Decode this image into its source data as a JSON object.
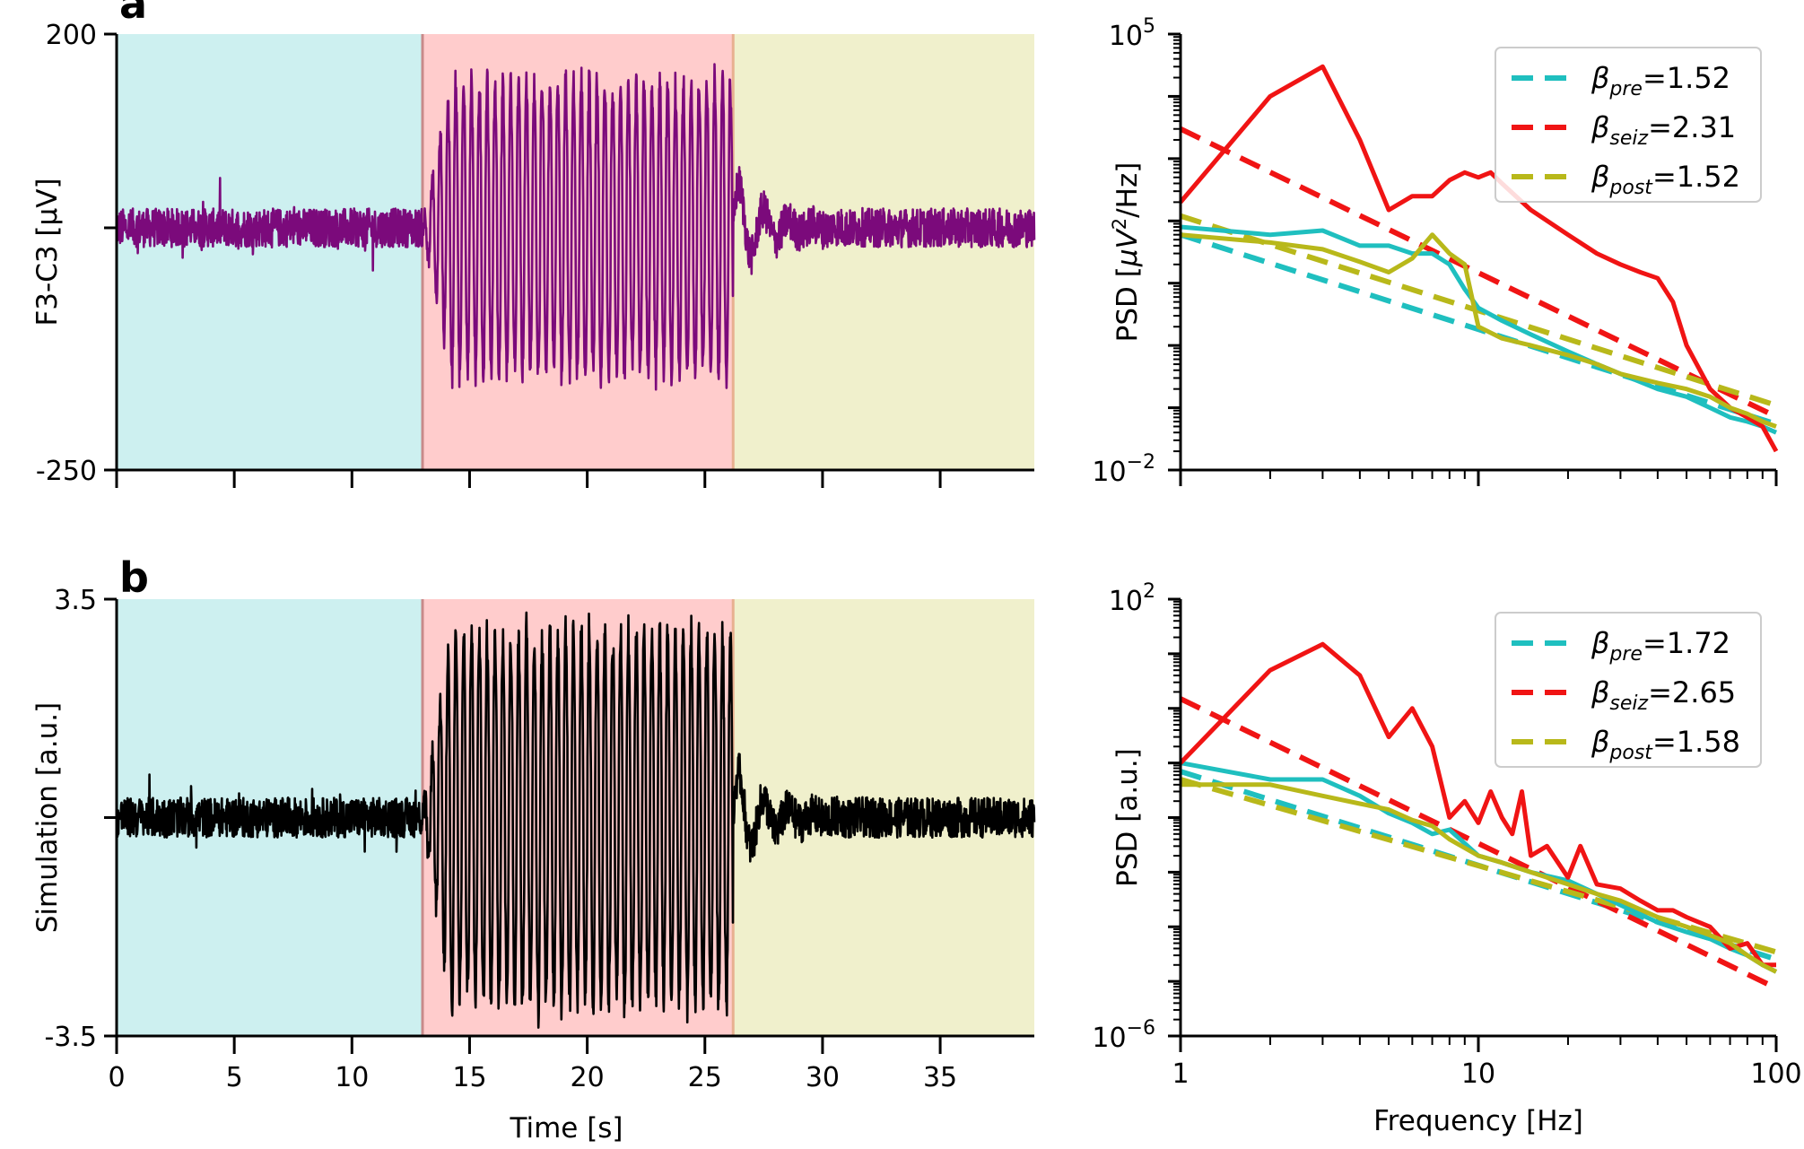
{
  "panels": [
    {
      "letter": "a"
    },
    {
      "letter": "b"
    }
  ],
  "chart_data": [
    {
      "id": "a-time",
      "type": "line",
      "panel": "a",
      "xlabel": "",
      "ylabel": "F3-C3 [μV]",
      "xlim": [
        0,
        39
      ],
      "ylim": [
        -250,
        200
      ],
      "yticks": [
        -250,
        0,
        200
      ],
      "ytick_labels": [
        "-250",
        "",
        "200"
      ],
      "xticks": [
        0,
        5,
        10,
        15,
        20,
        25,
        30,
        35
      ],
      "xtick_labels": [
        "",
        "",
        "",
        "",
        "",
        "",
        "",
        ""
      ],
      "trace_color": "#7b0a7b",
      "regions": [
        {
          "name": "pre",
          "start": 0,
          "end": 13,
          "color": "#cdf0f0"
        },
        {
          "name": "seiz",
          "start": 13,
          "end": 26.2,
          "color": "#ffcccc"
        },
        {
          "name": "post",
          "start": 26.2,
          "end": 39,
          "color": "#f0f0cc"
        }
      ],
      "segment_amplitudes": {
        "pre": 25,
        "seiz": 160,
        "post": 25
      },
      "seizure_frequency_hz": 3
    },
    {
      "id": "a-psd",
      "type": "line",
      "panel": "a",
      "xscale": "log",
      "yscale": "log",
      "xlabel": "",
      "ylabel": "PSD [μV²/Hz]",
      "ylabel_parts": {
        "pre": "PSD [",
        "unit_mu": "μV",
        "sup": "2",
        "post": "/Hz]"
      },
      "xlim": [
        1,
        100
      ],
      "ylim": [
        0.01,
        100000
      ],
      "ytick_labels": [
        {
          "base": "10",
          "exp": "5",
          "value": 100000
        },
        {
          "base": "10",
          "exp": "−2",
          "value": 0.01
        }
      ],
      "xtick_labels": [],
      "legend_position": "top-right",
      "series": [
        {
          "name": "pre",
          "style": "solid",
          "color": "#1fbfbf",
          "x": [
            1,
            2,
            3,
            4,
            5,
            6,
            7,
            8,
            9,
            10,
            12,
            15,
            20,
            25,
            30,
            40,
            50,
            60,
            70,
            80,
            90,
            100
          ],
          "y": [
            80,
            60,
            70,
            40,
            40,
            30,
            30,
            20,
            8,
            4,
            2.5,
            1.5,
            0.8,
            0.5,
            0.35,
            0.2,
            0.15,
            0.1,
            0.07,
            0.06,
            0.05,
            0.04
          ]
        },
        {
          "name": "seiz",
          "style": "solid",
          "color": "#f01414",
          "x": [
            1,
            2,
            3,
            4,
            5,
            6,
            7,
            8,
            9,
            10,
            11,
            12,
            15,
            20,
            25,
            30,
            35,
            40,
            45,
            50,
            60,
            70,
            80,
            90,
            100
          ],
          "y": [
            200,
            10000,
            30000,
            2000,
            150,
            250,
            250,
            450,
            600,
            500,
            600,
            400,
            150,
            60,
            30,
            20,
            15,
            12,
            5,
            1,
            0.2,
            0.1,
            0.07,
            0.05,
            0.02
          ]
        },
        {
          "name": "post",
          "style": "solid",
          "color": "#b8b81a",
          "x": [
            1,
            2,
            3,
            4,
            5,
            6,
            7,
            8,
            9,
            10,
            12,
            15,
            20,
            25,
            30,
            40,
            50,
            60,
            70,
            80,
            90,
            100
          ],
          "y": [
            60,
            45,
            35,
            22,
            15,
            25,
            60,
            30,
            20,
            2,
            1.3,
            1,
            0.7,
            0.5,
            0.35,
            0.25,
            0.2,
            0.15,
            0.1,
            0.08,
            0.06,
            0.05
          ]
        },
        {
          "name": "pre_fit",
          "style": "dashed",
          "color": "#1fbfbf",
          "beta": 1.52,
          "amplitude": 60
        },
        {
          "name": "seiz_fit",
          "style": "dashed",
          "color": "#f01414",
          "beta": 2.31,
          "amplitude": 3000
        },
        {
          "name": "post_fit",
          "style": "dashed",
          "color": "#b8b81a",
          "beta": 1.52,
          "amplitude": 120
        }
      ],
      "legend": [
        {
          "beta": "β",
          "sub": "pre",
          "value": "=1.52",
          "color": "#1fbfbf"
        },
        {
          "beta": "β",
          "sub": "seiz",
          "value": "=2.31",
          "color": "#f01414"
        },
        {
          "beta": "β",
          "sub": "post",
          "value": "=1.52",
          "color": "#b8b81a"
        }
      ]
    },
    {
      "id": "b-time",
      "type": "line",
      "panel": "b",
      "xlabel": "Time [s]",
      "ylabel": "Simulation [a.u.]",
      "xlim": [
        0,
        39
      ],
      "ylim": [
        -3.5,
        3.5
      ],
      "yticks": [
        -3.5,
        0,
        3.5
      ],
      "ytick_labels": [
        "-3.5",
        "",
        "3.5"
      ],
      "xticks": [
        0,
        5,
        10,
        15,
        20,
        25,
        30,
        35
      ],
      "xtick_labels": [
        "0",
        "5",
        "10",
        "15",
        "20",
        "25",
        "30",
        "35"
      ],
      "trace_color": "#000000",
      "regions": [
        {
          "name": "pre",
          "start": 0,
          "end": 13,
          "color": "#cdf0f0"
        },
        {
          "name": "seiz",
          "start": 13,
          "end": 26.2,
          "color": "#ffcccc"
        },
        {
          "name": "post",
          "start": 26.2,
          "end": 39,
          "color": "#f0f0cc"
        }
      ],
      "segment_amplitudes": {
        "pre": 0.4,
        "seiz": 3.2,
        "post": 0.4
      },
      "seizure_frequency_hz": 3
    },
    {
      "id": "b-psd",
      "type": "line",
      "panel": "b",
      "xscale": "log",
      "yscale": "log",
      "xlabel": "Frequency [Hz]",
      "ylabel": "PSD [a.u.]",
      "xlim": [
        1,
        100
      ],
      "ylim": [
        1e-06,
        100
      ],
      "ytick_labels": [
        {
          "base": "10",
          "exp": "2",
          "value": 100
        },
        {
          "base": "10",
          "exp": "−6",
          "value": 1e-06
        }
      ],
      "xtick_labels": [
        {
          "text": "1",
          "value": 1
        },
        {
          "text": "10",
          "value": 10
        },
        {
          "text": "100",
          "value": 100
        }
      ],
      "legend_position": "top-right",
      "series": [
        {
          "name": "pre",
          "style": "solid",
          "color": "#1fbfbf",
          "x": [
            1,
            2,
            3,
            4,
            5,
            6,
            7,
            8,
            10,
            12,
            15,
            20,
            25,
            30,
            40,
            50,
            60,
            70,
            80,
            90,
            100
          ],
          "y": [
            0.1,
            0.05,
            0.05,
            0.025,
            0.012,
            0.008,
            0.005,
            0.006,
            0.002,
            0.0015,
            0.001,
            0.0007,
            0.0004,
            0.00025,
            0.00012,
            8e-05,
            6e-05,
            4e-05,
            3e-05,
            2e-05,
            1.5e-05
          ]
        },
        {
          "name": "seiz",
          "style": "solid",
          "color": "#f01414",
          "x": [
            1,
            2,
            3,
            4,
            5,
            6,
            7,
            8,
            9,
            10,
            11,
            12,
            13,
            14,
            15,
            17,
            20,
            22,
            25,
            30,
            35,
            40,
            45,
            50,
            60,
            70,
            80,
            90,
            100
          ],
          "y": [
            0.1,
            5,
            15,
            4,
            0.3,
            1,
            0.2,
            0.01,
            0.02,
            0.008,
            0.03,
            0.01,
            0.005,
            0.03,
            0.002,
            0.003,
            0.0008,
            0.003,
            0.0006,
            0.0005,
            0.0003,
            0.0002,
            0.0002,
            0.00015,
            0.0001,
            4e-05,
            5e-05,
            2e-05,
            2e-05
          ]
        },
        {
          "name": "post",
          "style": "solid",
          "color": "#b8b81a",
          "x": [
            1,
            2,
            3,
            4,
            5,
            6,
            7,
            8,
            10,
            12,
            15,
            20,
            25,
            30,
            40,
            50,
            60,
            70,
            80,
            90,
            100
          ],
          "y": [
            0.04,
            0.04,
            0.025,
            0.018,
            0.014,
            0.009,
            0.007,
            0.004,
            0.002,
            0.0015,
            0.001,
            0.0006,
            0.0004,
            0.0003,
            0.00015,
            0.0001,
            7e-05,
            5e-05,
            3e-05,
            2e-05,
            1.5e-05
          ]
        },
        {
          "name": "pre_fit",
          "style": "dashed",
          "color": "#1fbfbf",
          "beta": 1.72,
          "amplitude": 0.07
        },
        {
          "name": "seiz_fit",
          "style": "dashed",
          "color": "#f01414",
          "beta": 2.65,
          "amplitude": 1.5
        },
        {
          "name": "post_fit",
          "style": "dashed",
          "color": "#b8b81a",
          "beta": 1.58,
          "amplitude": 0.05
        }
      ],
      "legend": [
        {
          "beta": "β",
          "sub": "pre",
          "value": "=1.72",
          "color": "#1fbfbf"
        },
        {
          "beta": "β",
          "sub": "seiz",
          "value": "=2.65",
          "color": "#f01414"
        },
        {
          "beta": "β",
          "sub": "post",
          "value": "=1.58",
          "color": "#b8b81a"
        }
      ]
    }
  ]
}
